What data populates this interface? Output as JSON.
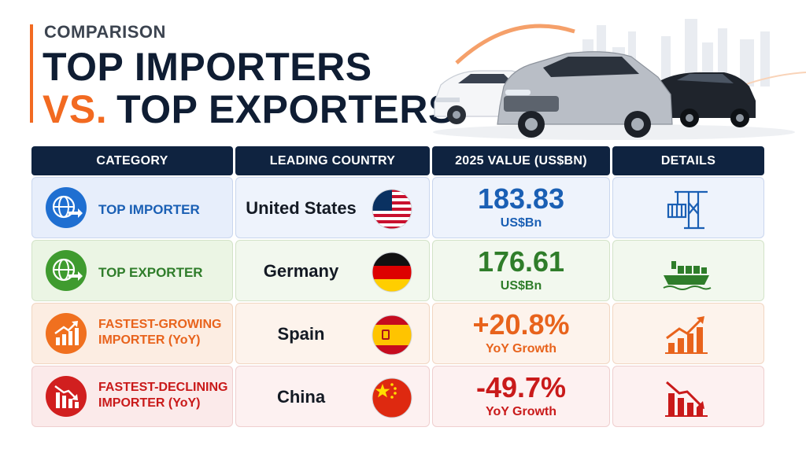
{
  "header": {
    "eyebrow": "COMPARISON",
    "title_line1": "TOP IMPORTERS",
    "title_vs": "VS.",
    "title_line2": "TOP EXPORTERS"
  },
  "colors": {
    "navy": "#0f2340",
    "orange": "#f26a21",
    "blue": "#1a5fb4",
    "green": "#2f7d2a",
    "red": "#c91a1a"
  },
  "table": {
    "headers": [
      "CATEGORY",
      "LEADING COUNTRY",
      "2025 VALUE (US$BN)",
      "DETAILS"
    ],
    "rows": [
      {
        "category": "TOP IMPORTER",
        "category_icon": "globe-arrow-icon",
        "country": "United States",
        "flag": "us-flag",
        "value": "183.83",
        "unit": "US$Bn",
        "detail_icon": "port-crane-icon"
      },
      {
        "category": "TOP EXPORTER",
        "category_icon": "globe-arrow-icon",
        "country": "Germany",
        "flag": "germany-flag",
        "value": "176.61",
        "unit": "US$Bn",
        "detail_icon": "cargo-ship-icon"
      },
      {
        "category_line1": "FASTEST-GROWING",
        "category_line2": "IMPORTER (YoY)",
        "category_icon": "chart-up-icon",
        "country": "Spain",
        "flag": "spain-flag",
        "value": "+20.8%",
        "unit": "YoY Growth",
        "detail_icon": "chart-up-icon"
      },
      {
        "category_line1": "FASTEST-DECLINING",
        "category_line2": "IMPORTER (YoY)",
        "category_icon": "chart-down-icon",
        "country": "China",
        "flag": "china-flag",
        "value": "-49.7%",
        "unit": "YoY Growth",
        "detail_icon": "chart-down-icon"
      }
    ]
  }
}
